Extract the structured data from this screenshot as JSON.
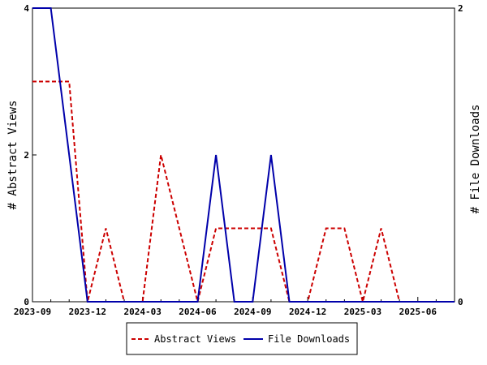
{
  "chart_data": {
    "type": "line",
    "title": "",
    "xlabel": "",
    "ylabel": "# Abstract Views",
    "y2label": "# File Downloads",
    "x_ticks": [
      "2023-09",
      "2023-12",
      "2024-03",
      "2024-06",
      "2024-09",
      "2024-12",
      "2025-03",
      "2025-06"
    ],
    "x": [
      "2023-09",
      "2023-10",
      "2023-11",
      "2023-12",
      "2024-01",
      "2024-02",
      "2024-03",
      "2024-04",
      "2024-05",
      "2024-06",
      "2024-07",
      "2024-08",
      "2024-09",
      "2024-10",
      "2024-11",
      "2024-12",
      "2025-01",
      "2025-02",
      "2025-03",
      "2025-04",
      "2025-05",
      "2025-06",
      "2025-07",
      "2025-08"
    ],
    "ylim": [
      0,
      4
    ],
    "y_ticks": [
      0,
      2,
      4
    ],
    "y2lim": [
      0,
      2
    ],
    "y2_ticks": [
      0,
      2
    ],
    "series": [
      {
        "name": "Abstract Views",
        "axis": "left",
        "color": "#cc0000",
        "style": "dashed",
        "values": [
          3,
          3,
          3,
          0,
          1,
          0,
          0,
          2,
          1,
          0,
          1,
          1,
          1,
          1,
          0,
          0,
          1,
          1,
          0,
          1,
          0,
          0,
          0,
          0
        ]
      },
      {
        "name": "File Downloads",
        "axis": "right",
        "color": "#0000aa",
        "style": "solid",
        "values": [
          2,
          2,
          1,
          0,
          0,
          0,
          0,
          0,
          0,
          0,
          1,
          0,
          0,
          1,
          0,
          0,
          0,
          0,
          0,
          0,
          0,
          0,
          0,
          0
        ]
      }
    ],
    "grid": false,
    "legend_position": "bottom"
  }
}
